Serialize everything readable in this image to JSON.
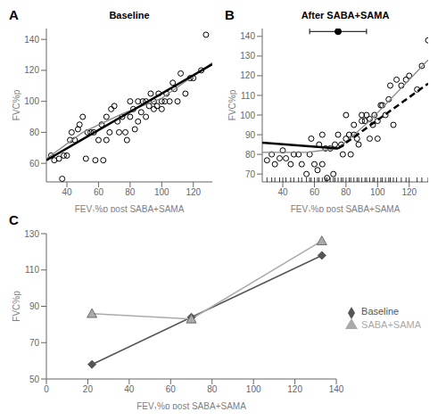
{
  "chart_data": [
    {
      "type": "scatter",
      "title": "Baseline",
      "annotations": [
        "A"
      ],
      "xlabel": "FEV₁%p post SABA+SAMA",
      "ylabel": "FVC%p",
      "xlim": [
        27,
        132
      ],
      "ylim": [
        48,
        147
      ],
      "xticks": [
        40,
        60,
        80,
        100,
        120
      ],
      "yticks": [
        60,
        80,
        100,
        120,
        140
      ],
      "grid": false,
      "series": [
        {
          "type": "scatter",
          "marker": "circle",
          "color": "#000000",
          "x": [
            30,
            32,
            35,
            37,
            38,
            40,
            42,
            43,
            45,
            47,
            48,
            50,
            52,
            53,
            55,
            57,
            58,
            60,
            62,
            63,
            65,
            65,
            67,
            68,
            70,
            72,
            73,
            75,
            77,
            78,
            80,
            80,
            82,
            83,
            85,
            85,
            87,
            88,
            90,
            90,
            92,
            93,
            95,
            95,
            97,
            98,
            100,
            100,
            102,
            103,
            105,
            107,
            108,
            110,
            112,
            115,
            118,
            120,
            125,
            128
          ],
          "values": [
            65,
            62,
            63,
            50,
            65,
            65,
            75,
            80,
            75,
            82,
            85,
            90,
            63,
            80,
            80,
            80,
            62,
            75,
            85,
            62,
            75,
            90,
            80,
            95,
            97,
            87,
            80,
            90,
            80,
            75,
            90,
            100,
            95,
            82,
            87,
            100,
            93,
            100,
            90,
            100,
            97,
            105,
            95,
            100,
            97,
            105,
            95,
            100,
            100,
            105,
            100,
            112,
            108,
            100,
            118,
            105,
            115,
            115,
            120,
            143
          ]
        },
        {
          "type": "line",
          "line_style": "solid",
          "color": "#888888",
          "x": [
            27,
            50,
            75,
            100,
            132
          ],
          "values": [
            63,
            80,
            92,
            102,
            125
          ]
        },
        {
          "type": "line",
          "line_style": "solid",
          "color": "#000000",
          "x": [
            27,
            132
          ],
          "values": [
            62,
            124
          ]
        }
      ]
    },
    {
      "type": "scatter",
      "title": "After SABA+SAMA",
      "annotations": [
        "B"
      ],
      "xlabel": "FEV₁%p post SABA+SAMA",
      "ylabel": "FVC%p",
      "xlim": [
        27,
        132
      ],
      "ylim": [
        66,
        144
      ],
      "xticks": [
        40,
        60,
        80,
        100,
        120
      ],
      "yticks": [
        70,
        80,
        90,
        100,
        110,
        120,
        130,
        140
      ],
      "grid": false,
      "series": [
        {
          "type": "scatter",
          "marker": "circle",
          "color": "#000000",
          "x": [
            30,
            33,
            35,
            38,
            40,
            42,
            45,
            47,
            50,
            52,
            55,
            57,
            58,
            60,
            62,
            63,
            65,
            65,
            67,
            68,
            70,
            72,
            73,
            75,
            77,
            78,
            80,
            80,
            82,
            83,
            85,
            85,
            87,
            88,
            90,
            90,
            92,
            93,
            95,
            95,
            97,
            98,
            100,
            100,
            102,
            103,
            105,
            107,
            108,
            110,
            112,
            115,
            118,
            120,
            125,
            128,
            132
          ],
          "values": [
            77,
            80,
            75,
            78,
            82,
            78,
            75,
            80,
            80,
            75,
            70,
            80,
            88,
            75,
            72,
            85,
            90,
            75,
            83,
            68,
            83,
            70,
            85,
            90,
            85,
            80,
            88,
            100,
            90,
            80,
            90,
            95,
            88,
            85,
            97,
            100,
            97,
            100,
            98,
            88,
            95,
            100,
            97,
            88,
            105,
            105,
            100,
            108,
            115,
            95,
            118,
            115,
            118,
            120,
            113,
            125,
            138
          ]
        },
        {
          "type": "line",
          "line_style": "solid",
          "color": "#888888",
          "x": [
            27,
            55,
            75,
            95,
            132
          ],
          "values": [
            81,
            81,
            83,
            97,
            128
          ]
        },
        {
          "type": "line",
          "line_style": "solid",
          "color": "#000000",
          "x": [
            27,
            75
          ],
          "values": [
            86,
            83
          ]
        },
        {
          "type": "line",
          "line_style": "dashed",
          "color": "#000000",
          "x": [
            75,
            132
          ],
          "values": [
            83,
            116
          ]
        },
        {
          "type": "scatter",
          "marker": "dot",
          "color": "#000000",
          "x": [
            75
          ],
          "values": [
            142.5
          ],
          "x_low": [
            57
          ],
          "x_high": [
            93
          ]
        },
        {
          "type": "rug",
          "color": "#000000",
          "x": [
            30,
            33,
            35,
            38,
            40,
            42,
            45,
            47,
            50,
            52,
            55,
            57,
            58,
            60,
            62,
            63,
            65,
            67,
            68,
            70,
            72,
            73,
            75,
            77,
            78,
            80,
            82,
            83,
            85,
            87,
            88,
            90,
            92,
            93,
            95,
            97,
            98,
            100,
            102,
            103,
            105,
            107,
            108,
            110,
            112,
            115,
            118,
            120,
            125,
            128,
            132
          ]
        }
      ]
    },
    {
      "type": "line",
      "annotations": [
        "C"
      ],
      "xlabel": "FEV₁%p post SABA+SAMA",
      "ylabel": "FVC%p",
      "xlim": [
        0,
        140
      ],
      "ylim": [
        50,
        130
      ],
      "xticks": [
        0,
        20,
        40,
        60,
        80,
        100,
        120,
        140
      ],
      "yticks": [
        50,
        70,
        90,
        110,
        130
      ],
      "grid": false,
      "legend": "right",
      "x": [
        22,
        70,
        133
      ],
      "series": [
        {
          "name": "Baseline",
          "color": "#555555",
          "marker": "diamond",
          "line_style": "solid",
          "values": [
            58,
            84,
            118
          ]
        },
        {
          "name": "SABA+SAMA",
          "color": "#aaaaaa",
          "marker": "triangle",
          "line_style": "solid",
          "values": [
            86,
            83,
            126
          ]
        }
      ]
    }
  ]
}
